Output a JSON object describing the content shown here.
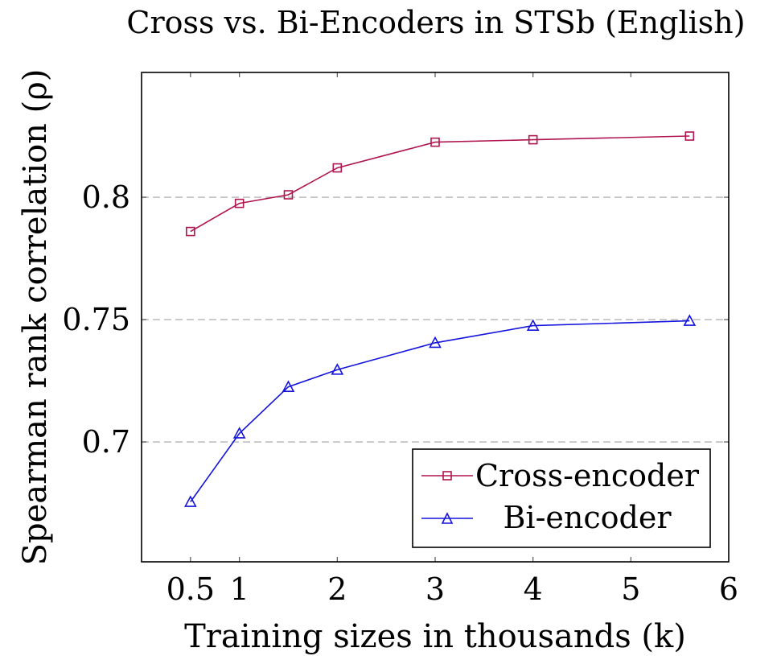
{
  "chart_data": {
    "type": "line",
    "title": "Cross vs. Bi-Encoders in STSb (English)",
    "xlabel": "Training sizes in thousands (k)",
    "ylabel": "Spearman rank correlation (ρ)",
    "xlim": [
      0,
      6
    ],
    "ylim": [
      0.651,
      0.851
    ],
    "xticks": [
      0.5,
      1,
      2,
      3,
      4,
      5,
      6
    ],
    "xtick_labels": [
      "0.5",
      "1",
      "2",
      "3",
      "4",
      "5",
      "6"
    ],
    "yticks": [
      0.7,
      0.75,
      0.8
    ],
    "ytick_labels": [
      "0.7",
      "0.75",
      "0.8"
    ],
    "grid": "horizontal-dashed",
    "legend_position": "bottom-right",
    "series": [
      {
        "name": "Cross-encoder",
        "color": "#b0154f",
        "marker": "square",
        "x": [
          0.5,
          1,
          1.5,
          2,
          3,
          4,
          5.6
        ],
        "y": [
          0.786,
          0.7975,
          0.801,
          0.812,
          0.8225,
          0.8235,
          0.825
        ]
      },
      {
        "name": "Bi-encoder",
        "color": "#1414dc",
        "marker": "triangle",
        "x": [
          0.5,
          1,
          1.5,
          2,
          3,
          4,
          5.6
        ],
        "y": [
          0.6755,
          0.7035,
          0.7225,
          0.7295,
          0.7405,
          0.7475,
          0.7495
        ]
      }
    ]
  }
}
